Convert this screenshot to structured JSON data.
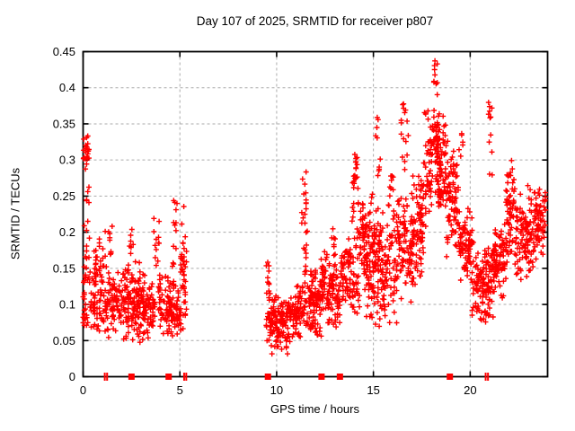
{
  "chart_data": {
    "type": "scatter",
    "title": "Day 107 of 2025, SRMTID for receiver p807",
    "xlabel": "GPS time / hours",
    "ylabel": "SRMTID / TECUs",
    "xlim": [
      0,
      24
    ],
    "ylim": [
      0,
      0.45
    ],
    "xticks": [
      0,
      5,
      10,
      15,
      20
    ],
    "xtick_labels": [
      "0",
      "5",
      "10",
      "15",
      "20"
    ],
    "yticks": [
      0,
      0.05,
      0.1,
      0.15,
      0.2,
      0.25,
      0.3,
      0.35,
      0.4,
      0.45
    ],
    "ytick_labels": [
      "0",
      "0.05",
      "0.1",
      "0.15",
      "0.2",
      "0.25",
      "0.3",
      "0.35",
      "0.4",
      "0.45"
    ],
    "grid": {
      "show": true,
      "style": "dashed",
      "color": "#aaaaaa"
    },
    "legend": "none",
    "marker": {
      "glyph": "plus",
      "color": "#ff0000",
      "size": 7
    },
    "series": [
      {
        "name": "SRMTID",
        "color": "#ff0000",
        "marker": "plus",
        "clusters_format": [
          "t_start_h",
          "t_end_h",
          "y_min_TECU",
          "y_max_TECU",
          "n_points",
          "shape(0=uniform,1=center,2=low)"
        ],
        "clusters": [
          [
            0.02,
            0.3,
            0.28,
            0.335,
            22,
            1
          ],
          [
            0.02,
            0.3,
            0.19,
            0.28,
            8,
            0
          ],
          [
            0.0,
            1.2,
            0.13,
            0.205,
            55,
            2
          ],
          [
            0.0,
            1.2,
            0.055,
            0.13,
            75,
            1
          ],
          [
            1.3,
            1.5,
            0.155,
            0.21,
            8,
            0
          ],
          [
            1.2,
            2.2,
            0.05,
            0.155,
            95,
            1
          ],
          [
            2.4,
            2.6,
            0.17,
            0.21,
            7,
            0
          ],
          [
            2.2,
            3.1,
            0.04,
            0.17,
            115,
            1
          ],
          [
            3.1,
            3.7,
            0.05,
            0.15,
            70,
            1
          ],
          [
            3.65,
            3.95,
            0.15,
            0.22,
            12,
            0
          ],
          [
            3.9,
            4.55,
            0.05,
            0.145,
            65,
            1
          ],
          [
            4.6,
            4.85,
            0.12,
            0.25,
            18,
            0
          ],
          [
            4.55,
            5.05,
            0.05,
            0.13,
            45,
            1
          ],
          [
            5.05,
            5.35,
            0.04,
            0.255,
            42,
            1
          ],
          [
            9.45,
            9.65,
            0.035,
            0.16,
            18,
            0
          ],
          [
            9.6,
            10.6,
            0.03,
            0.12,
            115,
            1
          ],
          [
            10.6,
            11.25,
            0.04,
            0.14,
            70,
            1
          ],
          [
            11.3,
            11.6,
            0.14,
            0.3,
            25,
            0
          ],
          [
            11.25,
            11.7,
            0.06,
            0.14,
            30,
            1
          ],
          [
            11.7,
            12.3,
            0.05,
            0.16,
            85,
            1
          ],
          [
            12.3,
            13.3,
            0.06,
            0.18,
            115,
            1
          ],
          [
            12.85,
            13.05,
            0.18,
            0.205,
            6,
            0
          ],
          [
            13.3,
            13.85,
            0.09,
            0.21,
            60,
            1
          ],
          [
            13.9,
            14.25,
            0.15,
            0.31,
            35,
            0
          ],
          [
            13.85,
            14.25,
            0.08,
            0.15,
            25,
            1
          ],
          [
            14.25,
            15.05,
            0.07,
            0.27,
            115,
            1
          ],
          [
            15.1,
            15.35,
            0.26,
            0.37,
            10,
            0
          ],
          [
            15.0,
            16.2,
            0.06,
            0.25,
            135,
            1
          ],
          [
            15.85,
            16.05,
            0.25,
            0.285,
            8,
            0
          ],
          [
            16.4,
            16.8,
            0.28,
            0.38,
            16,
            0
          ],
          [
            16.2,
            17.05,
            0.1,
            0.27,
            95,
            1
          ],
          [
            17.0,
            17.6,
            0.12,
            0.3,
            80,
            1
          ],
          [
            17.6,
            18.05,
            0.2,
            0.38,
            50,
            1
          ],
          [
            18.05,
            18.35,
            0.38,
            0.45,
            10,
            0
          ],
          [
            18.05,
            18.4,
            0.3,
            0.38,
            25,
            1
          ],
          [
            18.2,
            18.75,
            0.22,
            0.38,
            70,
            1
          ],
          [
            18.35,
            18.6,
            0.235,
            0.265,
            22,
            1
          ],
          [
            18.75,
            19.4,
            0.15,
            0.34,
            80,
            1
          ],
          [
            19.4,
            19.65,
            0.3,
            0.345,
            6,
            0
          ],
          [
            19.4,
            20.1,
            0.12,
            0.25,
            85,
            1
          ],
          [
            20.1,
            20.95,
            0.07,
            0.19,
            95,
            1
          ],
          [
            20.95,
            21.15,
            0.26,
            0.38,
            12,
            0
          ],
          [
            20.9,
            21.3,
            0.08,
            0.2,
            40,
            1
          ],
          [
            21.2,
            21.85,
            0.1,
            0.22,
            70,
            1
          ],
          [
            21.85,
            22.3,
            0.15,
            0.32,
            60,
            1
          ],
          [
            22.3,
            23.15,
            0.12,
            0.27,
            95,
            1
          ],
          [
            23.1,
            23.9,
            0.15,
            0.27,
            85,
            1
          ]
        ]
      }
    ],
    "axis_event_markers": {
      "color": "#ff0000",
      "squares_t": [
        2.5,
        4.42,
        9.55,
        12.32,
        13.27,
        18.95
      ],
      "tick_pairs_t": [
        1.12,
        1.24,
        5.22,
        5.33,
        20.8,
        20.92
      ]
    },
    "render": {
      "seed": 7,
      "t_grid": 0.06
    }
  }
}
